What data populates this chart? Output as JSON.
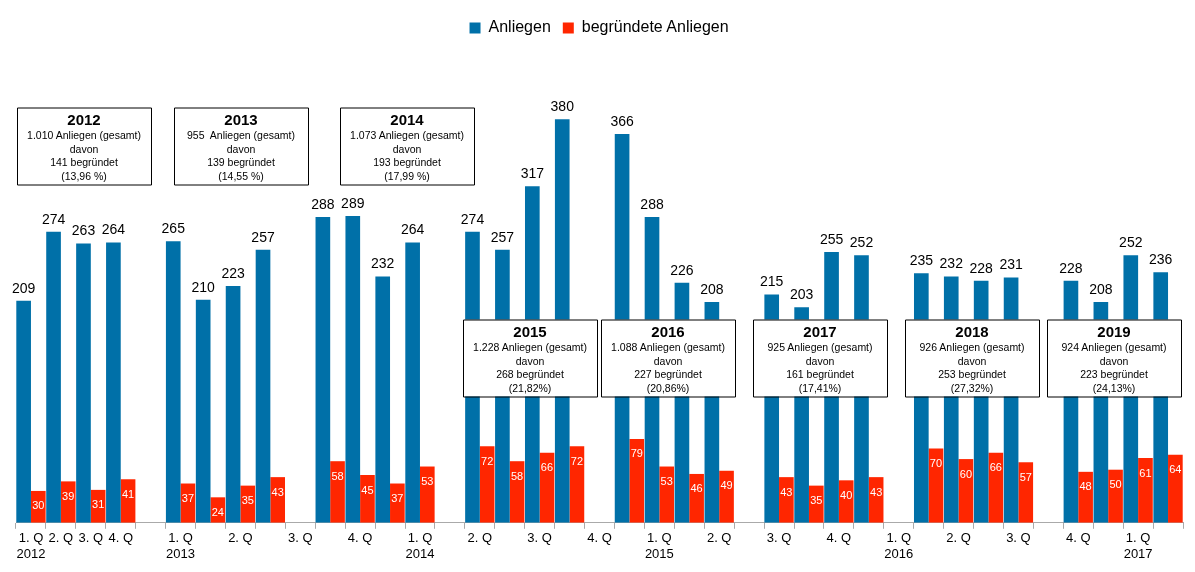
{
  "chart_data": {
    "type": "bar",
    "categories": [
      "1. Q\n2012",
      "2. Q",
      "3. Q",
      "4. Q",
      null,
      "1. Q\n2013",
      null,
      "2. Q",
      null,
      "3. Q",
      null,
      "4. Q",
      null,
      "1. Q\n2014",
      null,
      "2. Q",
      null,
      "3. Q",
      null,
      "4. Q",
      null,
      "1. Q\n2015",
      null,
      "2. Q",
      null,
      "3. Q",
      null,
      "4. Q",
      null,
      "1. Q\n2016",
      null,
      "2. Q",
      null,
      "3. Q",
      null,
      "4. Q",
      null,
      "1. Q\n2017",
      null
    ],
    "series": [
      {
        "name": "Anliegen",
        "color": "#0070a8",
        "values": [
          209,
          274,
          263,
          264,
          null,
          265,
          210,
          223,
          257,
          null,
          288,
          289,
          232,
          264,
          null,
          274,
          257,
          317,
          380,
          null,
          366,
          288,
          226,
          208,
          null,
          215,
          203,
          255,
          252,
          null,
          235,
          232,
          228,
          231,
          null,
          228,
          208,
          252,
          236
        ]
      },
      {
        "name": "begründete Anliegen",
        "color": "#ff2600",
        "values": [
          30,
          39,
          31,
          41,
          null,
          37,
          24,
          35,
          43,
          null,
          58,
          45,
          37,
          53,
          null,
          72,
          58,
          66,
          72,
          null,
          79,
          53,
          46,
          49,
          null,
          43,
          35,
          40,
          43,
          null,
          70,
          60,
          66,
          57,
          null,
          48,
          50,
          61,
          64
        ]
      }
    ],
    "data_labels": true,
    "legend": "top",
    "grid": false,
    "annotations": [
      "2012\n1.010 Anliegen (gesamt)\ndavon\n141 begründet\n(13,96 %)",
      "2013\n955  Anliegen (gesamt)\ndavon\n139 begründet\n(14,55 %)",
      "2014\n1.073 Anliegen (gesamt)\ndavon\n193 begründet\n(17,99 %)",
      "2015\n1.228 Anliegen (gesamt)\ndavon\n268 begründet\n(21,82%)",
      "2016\n1.088 Anliegen (gesamt)\ndavon\n227 begründet\n(20,86%)",
      "2017\n925 Anliegen (gesamt)\ndavon\n161 begründet\n(17,41%)",
      "2018\n926 Anliegen (gesamt)\ndavon\n253 begründet\n(27,32%)",
      "2019\n924 Anliegen (gesamt)\ndavon\n223 begründet\n(24,13%)"
    ]
  }
}
